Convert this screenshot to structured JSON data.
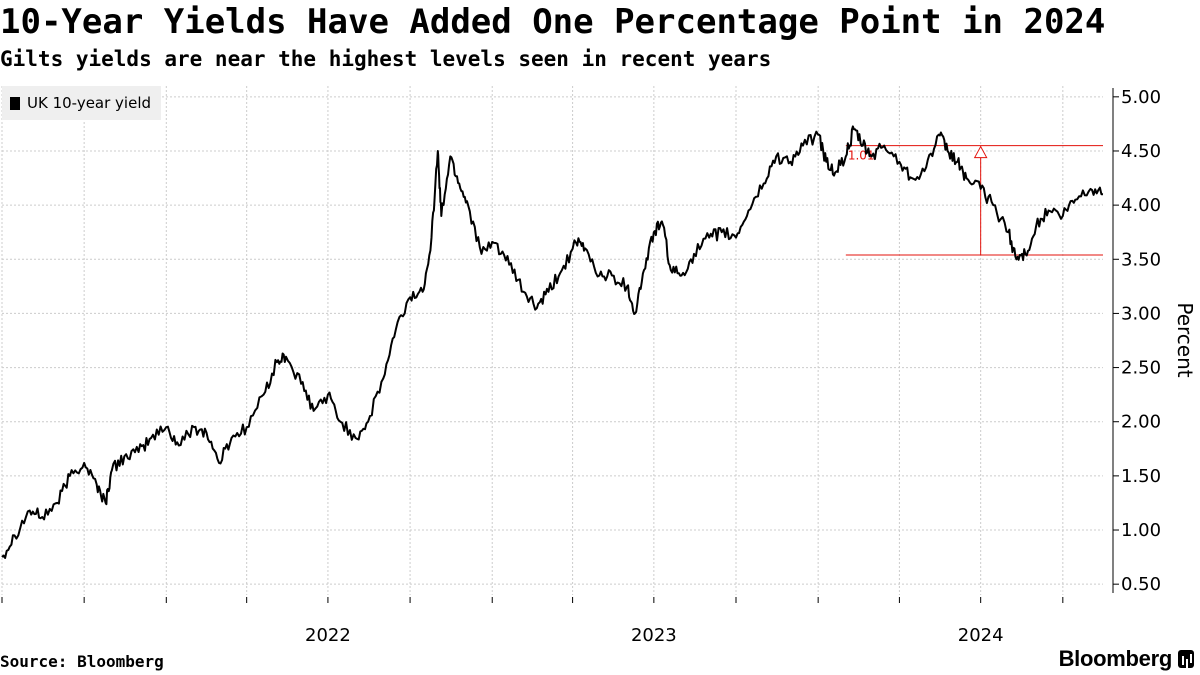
{
  "title": "10-Year Yields Have Added One Percentage Point in 2024",
  "subtitle": "Gilts yields are near the highest levels seen in recent years",
  "source": "Source: Bloomberg",
  "brand": "Bloomberg",
  "colors": {
    "line": "#000000",
    "annotation": "#e3120b",
    "grid": "#cccccc",
    "legend_bg": "#efefef"
  },
  "chart_data": {
    "type": "line",
    "ylabel": "Percent",
    "ylim": [
      0.4,
      5.1
    ],
    "y_ticks": [
      0.5,
      1.0,
      1.5,
      2.0,
      2.5,
      3.0,
      3.5,
      4.0,
      4.5,
      5.0
    ],
    "y_tick_labels": [
      "0.50",
      "1.00",
      "1.50",
      "2.00",
      "2.50",
      "3.00",
      "3.50",
      "4.00",
      "4.50",
      "5.00"
    ],
    "x_range": [
      "2021-07-01",
      "2024-11-15"
    ],
    "x_ticks": [
      "2021-07-01",
      "2021-10-01",
      "2022-01-01",
      "2022-04-01",
      "2022-07-01",
      "2022-10-01",
      "2023-01-01",
      "2023-04-01",
      "2023-07-01",
      "2023-10-01",
      "2024-01-01",
      "2024-04-01",
      "2024-07-01",
      "2024-10-01"
    ],
    "x_labels": [
      {
        "date": "2022-07-01",
        "label": "2022"
      },
      {
        "date": "2023-07-01",
        "label": "2023"
      },
      {
        "date": "2024-07-01",
        "label": "2024"
      }
    ],
    "grid": true,
    "legend_position": "top-left",
    "series": [
      {
        "name": "UK 10-year yield",
        "points": [
          [
            "2021-07-01",
            0.75
          ],
          [
            "2021-07-15",
            0.95
          ],
          [
            "2021-08-01",
            1.18
          ],
          [
            "2021-08-15",
            1.12
          ],
          [
            "2021-09-01",
            1.25
          ],
          [
            "2021-09-15",
            1.5
          ],
          [
            "2021-10-01",
            1.62
          ],
          [
            "2021-10-15",
            1.42
          ],
          [
            "2021-10-25",
            1.25
          ],
          [
            "2021-11-01",
            1.55
          ],
          [
            "2021-11-15",
            1.68
          ],
          [
            "2021-12-01",
            1.72
          ],
          [
            "2021-12-15",
            1.85
          ],
          [
            "2022-01-01",
            1.95
          ],
          [
            "2022-01-15",
            1.78
          ],
          [
            "2022-02-01",
            1.95
          ],
          [
            "2022-02-15",
            1.9
          ],
          [
            "2022-03-01",
            1.62
          ],
          [
            "2022-03-15",
            1.85
          ],
          [
            "2022-04-01",
            1.95
          ],
          [
            "2022-04-20",
            2.25
          ],
          [
            "2022-05-05",
            2.55
          ],
          [
            "2022-05-15",
            2.6
          ],
          [
            "2022-06-01",
            2.35
          ],
          [
            "2022-06-15",
            2.1
          ],
          [
            "2022-07-01",
            2.25
          ],
          [
            "2022-07-15",
            2.0
          ],
          [
            "2022-08-01",
            1.85
          ],
          [
            "2022-08-15",
            2.0
          ],
          [
            "2022-09-01",
            2.4
          ],
          [
            "2022-09-15",
            2.85
          ],
          [
            "2022-10-01",
            3.15
          ],
          [
            "2022-10-15",
            3.2
          ],
          [
            "2022-10-25",
            3.7
          ],
          [
            "2022-11-01",
            4.5
          ],
          [
            "2022-11-05",
            3.9
          ],
          [
            "2022-11-15",
            4.45
          ],
          [
            "2022-11-25",
            4.2
          ],
          [
            "2022-12-05",
            4.0
          ],
          [
            "2022-12-20",
            3.55
          ],
          [
            "2023-01-05",
            3.65
          ],
          [
            "2023-01-20",
            3.45
          ],
          [
            "2023-02-05",
            3.2
          ],
          [
            "2023-02-20",
            3.05
          ],
          [
            "2023-03-05",
            3.2
          ],
          [
            "2023-03-20",
            3.4
          ],
          [
            "2023-04-05",
            3.65
          ],
          [
            "2023-04-15",
            3.6
          ],
          [
            "2023-05-01",
            3.35
          ],
          [
            "2023-05-15",
            3.35
          ],
          [
            "2023-06-01",
            3.25
          ],
          [
            "2023-06-10",
            3.0
          ],
          [
            "2023-06-20",
            3.4
          ],
          [
            "2023-07-01",
            3.75
          ],
          [
            "2023-07-10",
            3.85
          ],
          [
            "2023-07-20",
            3.4
          ],
          [
            "2023-08-01",
            3.35
          ],
          [
            "2023-08-15",
            3.55
          ],
          [
            "2023-09-01",
            3.7
          ],
          [
            "2023-09-15",
            3.75
          ],
          [
            "2023-10-01",
            3.7
          ],
          [
            "2023-10-15",
            3.95
          ],
          [
            "2023-11-01",
            4.2
          ],
          [
            "2023-11-15",
            4.45
          ],
          [
            "2023-12-01",
            4.4
          ],
          [
            "2023-12-15",
            4.55
          ],
          [
            "2024-01-01",
            4.65
          ],
          [
            "2024-01-10",
            4.4
          ],
          [
            "2024-01-20",
            4.3
          ],
          [
            "2024-02-01",
            4.45
          ],
          [
            "2024-02-10",
            4.7
          ],
          [
            "2024-02-20",
            4.55
          ],
          [
            "2024-03-01",
            4.45
          ],
          [
            "2024-03-15",
            4.55
          ],
          [
            "2024-04-01",
            4.4
          ],
          [
            "2024-04-15",
            4.25
          ],
          [
            "2024-05-01",
            4.35
          ],
          [
            "2024-05-15",
            4.65
          ],
          [
            "2024-05-25",
            4.5
          ],
          [
            "2024-06-05",
            4.4
          ],
          [
            "2024-06-15",
            4.25
          ],
          [
            "2024-07-01",
            4.15
          ],
          [
            "2024-07-15",
            4.0
          ],
          [
            "2024-08-01",
            3.75
          ],
          [
            "2024-08-10",
            3.5
          ],
          [
            "2024-08-20",
            3.55
          ],
          [
            "2024-09-01",
            3.8
          ],
          [
            "2024-09-15",
            3.95
          ],
          [
            "2024-10-01",
            3.9
          ],
          [
            "2024-10-15",
            4.05
          ],
          [
            "2024-11-01",
            4.15
          ],
          [
            "2024-11-15",
            4.1
          ]
        ]
      }
    ],
    "annotations": [
      {
        "label": "1.01",
        "low": 3.54,
        "high": 4.55,
        "start": "2024-02-01",
        "arrow_at": "2024-07-01",
        "end": "2024-11-15"
      }
    ]
  }
}
